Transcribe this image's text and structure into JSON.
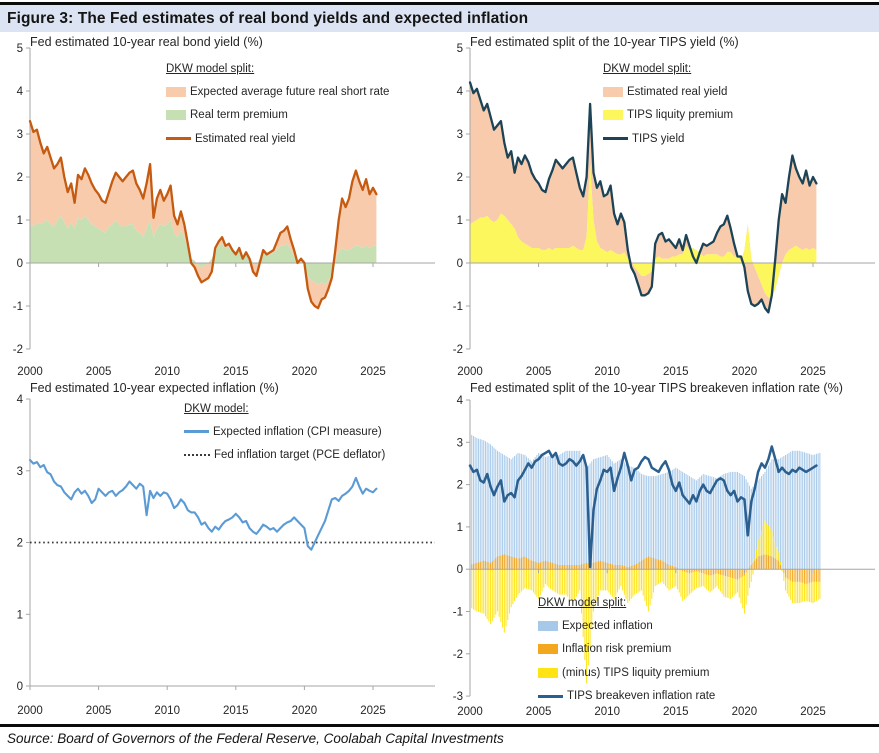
{
  "title_bar": {
    "text": "Figure 3: The Fed estimates of real bond yields and expected inflation"
  },
  "footer": {
    "text": "Source: Board of Governors of the Federal Reserve, Coolabah Capital Investments"
  },
  "colors": {
    "salmon": "#f8cbad",
    "green": "#c6e0b4",
    "rust": "#c55a11",
    "navy": "#1c4356",
    "steel": "#2b5f8f",
    "blue": "#5b9bd5",
    "lightblue": "#a7c9e9",
    "yellow_area": "#fdf75e",
    "yellow_bar": "#ffe312",
    "orange": "#f3a71e",
    "axis": "#a6a6a6",
    "text": "#262626",
    "target": "#3a3a3a",
    "titlebar_bg": "#dce3f2"
  },
  "chart_data": [
    {
      "id": "real-bond-yield",
      "type": "area",
      "title": "Fed estimated 10-year real bond yield (%)",
      "legend_title": "DKW model split:",
      "legend": [
        {
          "label": "Expected average future real short rate",
          "swatch": "area",
          "color": "salmon"
        },
        {
          "label": "Real term premium",
          "swatch": "area",
          "color": "green"
        },
        {
          "label": "Estimated real yield",
          "swatch": "line",
          "color": "rust"
        }
      ],
      "x": {
        "start": 2000,
        "step": 0.25,
        "ticks": [
          2000,
          2005,
          2010,
          2015,
          2020,
          2025
        ],
        "axis_max": 2029.5
      },
      "y": {
        "min": -2,
        "max": 5,
        "tick_step": 1
      },
      "render": {
        "kind": "stacked_area_line",
        "bottom": "real_term_premium",
        "total": "estimated_real_yield",
        "bottom_color": "green",
        "band_color": "salmon",
        "line_color": "rust"
      },
      "series": {
        "real_term_premium": [
          0.9,
          0.85,
          0.95,
          0.9,
          0.95,
          1.0,
          0.9,
          0.85,
          1.0,
          1.1,
          0.95,
          0.8,
          0.95,
          0.8,
          1.05,
          1.0,
          1.1,
          1.0,
          0.9,
          0.85,
          0.8,
          0.75,
          0.7,
          0.85,
          0.9,
          1.0,
          0.9,
          0.85,
          0.85,
          0.9,
          0.9,
          0.75,
          0.7,
          0.6,
          0.8,
          1.0,
          0.6,
          0.8,
          0.9,
          0.85,
          0.9,
          1.0,
          0.7,
          0.6,
          0.75,
          0.6,
          0.35,
          0.1,
          0.05,
          -0.05,
          -0.1,
          -0.05,
          0.0,
          0.1,
          0.3,
          0.4,
          0.45,
          0.35,
          0.35,
          0.3,
          0.25,
          0.3,
          0.15,
          0.25,
          0.15,
          0.0,
          -0.05,
          0.1,
          0.25,
          0.2,
          0.2,
          0.25,
          0.3,
          0.4,
          0.4,
          0.45,
          0.3,
          0.15,
          0.0,
          0.05,
          0.0,
          -0.3,
          -0.4,
          -0.45,
          -0.5,
          -0.45,
          -0.5,
          -0.4,
          -0.25,
          0.05,
          0.25,
          0.35,
          0.3,
          0.3,
          0.35,
          0.4,
          0.4,
          0.35,
          0.4,
          0.35,
          0.4,
          0.4
        ],
        "estimated_real_yield": [
          3.3,
          3.05,
          3.1,
          2.8,
          2.55,
          2.7,
          2.45,
          2.2,
          2.3,
          2.45,
          2.0,
          1.65,
          1.85,
          1.4,
          2.05,
          1.95,
          2.2,
          2.05,
          1.85,
          1.7,
          1.6,
          1.45,
          1.4,
          1.65,
          1.9,
          2.1,
          2.0,
          1.9,
          2.0,
          2.1,
          2.15,
          1.85,
          1.7,
          1.5,
          1.85,
          2.3,
          1.05,
          1.5,
          1.7,
          1.45,
          1.6,
          1.8,
          1.1,
          0.9,
          1.2,
          0.9,
          0.45,
          0.0,
          -0.1,
          -0.3,
          -0.45,
          -0.4,
          -0.35,
          -0.2,
          0.35,
          0.5,
          0.6,
          0.4,
          0.45,
          0.3,
          0.2,
          0.35,
          0.1,
          0.25,
          0.1,
          -0.2,
          -0.3,
          0.0,
          0.3,
          0.2,
          0.25,
          0.3,
          0.5,
          0.7,
          0.75,
          0.85,
          0.55,
          0.3,
          0.0,
          0.1,
          0.0,
          -0.6,
          -0.9,
          -1.0,
          -1.05,
          -0.85,
          -0.8,
          -0.6,
          -0.35,
          0.3,
          1.0,
          1.5,
          1.3,
          1.5,
          1.9,
          2.15,
          1.9,
          1.7,
          1.95,
          1.6,
          1.75,
          1.6
        ]
      }
    },
    {
      "id": "tips-yield-split",
      "type": "area",
      "title": "Fed estimated split of the 10-year TIPS yield (%)",
      "legend_title": "DKW model split:",
      "legend": [
        {
          "label": "Estimated real yield",
          "swatch": "area",
          "color": "salmon"
        },
        {
          "label": "TIPS liquity premium",
          "swatch": "area",
          "color": "yellow_area"
        },
        {
          "label": "TIPS yield",
          "swatch": "line",
          "color": "navy"
        }
      ],
      "x": {
        "start": 2000,
        "step": 0.25,
        "ticks": [
          2000,
          2005,
          2010,
          2015,
          2020,
          2025
        ],
        "axis_max": 2029.5
      },
      "y": {
        "min": -2,
        "max": 5,
        "tick_step": 1
      },
      "render": {
        "kind": "stacked_area_line",
        "bottom": "tips_liquidity_premium",
        "total": "tips_yield",
        "bottom_color": "yellow_area",
        "band_color": "salmon",
        "line_color": "navy"
      },
      "series": {
        "tips_liquidity_premium": [
          0.9,
          0.95,
          1.0,
          1.05,
          1.05,
          1.1,
          1.0,
          0.95,
          1.0,
          1.15,
          1.1,
          1.0,
          0.9,
          0.8,
          0.6,
          0.5,
          0.45,
          0.4,
          0.35,
          0.35,
          0.35,
          0.3,
          0.3,
          0.35,
          0.3,
          0.35,
          0.35,
          0.35,
          0.35,
          0.35,
          0.4,
          0.35,
          0.3,
          0.3,
          0.6,
          2.3,
          1.0,
          0.5,
          0.35,
          0.3,
          0.25,
          0.3,
          0.25,
          0.2,
          0.2,
          0.25,
          0.1,
          0.05,
          -0.1,
          -0.2,
          -0.3,
          -0.3,
          -0.25,
          -0.2,
          0.1,
          0.15,
          0.1,
          0.1,
          0.1,
          0.15,
          0.15,
          0.2,
          0.2,
          0.4,
          0.3,
          0.35,
          0.3,
          0.25,
          0.15,
          0.2,
          0.2,
          0.2,
          0.2,
          0.15,
          0.15,
          0.25,
          0.25,
          0.15,
          0.15,
          0.05,
          0.3,
          0.9,
          0.1,
          -0.1,
          -0.3,
          -0.5,
          -0.7,
          -0.8,
          -0.8,
          -0.6,
          -0.3,
          0.0,
          0.2,
          0.3,
          0.35,
          0.4,
          0.35,
          0.3,
          0.35,
          0.3,
          0.35,
          0.3
        ],
        "tips_yield": [
          4.2,
          3.95,
          4.05,
          3.8,
          3.55,
          3.7,
          3.4,
          3.1,
          3.2,
          3.3,
          2.8,
          2.45,
          2.6,
          2.1,
          2.45,
          2.3,
          2.5,
          2.35,
          2.1,
          1.95,
          1.85,
          1.7,
          1.65,
          1.95,
          2.15,
          2.4,
          2.3,
          2.2,
          2.3,
          2.4,
          2.45,
          2.1,
          1.75,
          1.55,
          2.0,
          3.7,
          2.1,
          1.75,
          1.9,
          1.55,
          1.6,
          1.8,
          1.15,
          0.9,
          1.15,
          0.95,
          0.3,
          -0.1,
          -0.25,
          -0.5,
          -0.75,
          -0.75,
          -0.7,
          -0.55,
          0.45,
          0.65,
          0.7,
          0.5,
          0.55,
          0.45,
          0.35,
          0.55,
          0.3,
          0.65,
          0.4,
          0.15,
          0.0,
          0.25,
          0.45,
          0.4,
          0.45,
          0.5,
          0.7,
          0.85,
          0.9,
          1.1,
          0.8,
          0.45,
          0.15,
          0.15,
          -0.1,
          -0.65,
          -0.95,
          -1.0,
          -0.95,
          -0.85,
          -1.05,
          -1.15,
          -0.75,
          0.1,
          1.0,
          1.6,
          1.4,
          2.0,
          2.5,
          2.2,
          2.0,
          1.85,
          2.15,
          1.8,
          2.0,
          1.85
        ]
      }
    },
    {
      "id": "expected-inflation",
      "type": "line",
      "title": "Fed estimated 10-year expected inflation (%)",
      "legend_title": "DKW model:",
      "legend": [
        {
          "label": "Expected inflation (CPI measure)",
          "swatch": "line",
          "color": "blue"
        },
        {
          "label": "Fed inflation target (PCE deflator)",
          "swatch": "dotted",
          "color": "target"
        }
      ],
      "x": {
        "start": 2000,
        "step": 0.25,
        "ticks": [
          2000,
          2005,
          2010,
          2015,
          2020,
          2025
        ],
        "axis_max": 2029.5
      },
      "y": {
        "min": 0,
        "max": 4,
        "tick_step": 1
      },
      "render": {
        "kind": "line_with_target",
        "line": "expected_inflation",
        "line_color": "blue",
        "target": 2.0
      },
      "series": {
        "expected_inflation": [
          3.15,
          3.1,
          3.12,
          3.05,
          3.08,
          2.98,
          2.95,
          2.85,
          2.8,
          2.78,
          2.7,
          2.65,
          2.6,
          2.7,
          2.75,
          2.68,
          2.72,
          2.65,
          2.55,
          2.6,
          2.75,
          2.7,
          2.65,
          2.7,
          2.72,
          2.65,
          2.7,
          2.73,
          2.78,
          2.85,
          2.8,
          2.75,
          2.82,
          2.78,
          2.38,
          2.72,
          2.62,
          2.7,
          2.65,
          2.7,
          2.68,
          2.6,
          2.48,
          2.52,
          2.6,
          2.55,
          2.45,
          2.42,
          2.42,
          2.35,
          2.25,
          2.28,
          2.2,
          2.15,
          2.22,
          2.18,
          2.25,
          2.3,
          2.32,
          2.35,
          2.4,
          2.35,
          2.28,
          2.3,
          2.2,
          2.15,
          2.12,
          2.18,
          2.25,
          2.22,
          2.18,
          2.2,
          2.15,
          2.2,
          2.25,
          2.28,
          2.3,
          2.35,
          2.3,
          2.25,
          2.2,
          1.95,
          1.9,
          2.0,
          2.1,
          2.2,
          2.3,
          2.45,
          2.6,
          2.62,
          2.58,
          2.65,
          2.68,
          2.72,
          2.78,
          2.9,
          2.78,
          2.68,
          2.75,
          2.72,
          2.7,
          2.75
        ],
        "fed_inflation_target": 2.0
      }
    },
    {
      "id": "breakeven-split",
      "type": "bar",
      "title": "Fed estimated split of the 10-year TIPS breakeven inflation rate (%)",
      "legend_title": "DKW model split:",
      "legend": [
        {
          "label": "Expected inflation",
          "swatch": "area",
          "color": "lightblue"
        },
        {
          "label": "Inflation risk premium",
          "swatch": "area",
          "color": "orange"
        },
        {
          "label": "(minus) TIPS liquity premium",
          "swatch": "area",
          "color": "yellow_bar"
        },
        {
          "label": "TIPS breakeven inflation rate",
          "swatch": "line",
          "color": "steel"
        }
      ],
      "x": {
        "start": 2000,
        "step": 0.25,
        "ticks": [
          2000,
          2005,
          2010,
          2015,
          2020,
          2025
        ],
        "axis_max": 2029.5
      },
      "y": {
        "min": -3,
        "max": 4,
        "tick_step": 1
      },
      "bars_x": {
        "start": 2000,
        "step": 0.5
      },
      "render": {
        "kind": "bars_with_line",
        "line": "tips_breakeven_rate",
        "line_color": "steel",
        "bar_blue": "expected_inflation_bars",
        "bar_orange": "inflation_risk_premium",
        "bar_yellow": "minus_tips_liquidity_premium"
      },
      "series": {
        "expected_inflation_bars": [
          3.2,
          3.1,
          3.05,
          2.95,
          2.8,
          2.7,
          2.6,
          2.75,
          2.7,
          2.55,
          2.75,
          2.65,
          2.7,
          2.7,
          2.8,
          2.8,
          2.8,
          2.4,
          2.6,
          2.65,
          2.7,
          2.5,
          2.6,
          2.45,
          2.4,
          2.25,
          2.2,
          2.2,
          2.25,
          2.3,
          2.4,
          2.3,
          2.2,
          2.1,
          2.25,
          2.2,
          2.15,
          2.25,
          2.3,
          2.3,
          2.2,
          1.9,
          2.1,
          2.3,
          2.6,
          2.6,
          2.7,
          2.8,
          2.8,
          2.75,
          2.7,
          2.75
        ],
        "inflation_risk_premium": [
          0.1,
          0.15,
          0.2,
          0.15,
          0.3,
          0.35,
          0.3,
          0.25,
          0.3,
          0.2,
          0.15,
          0.2,
          0.15,
          0.1,
          0.1,
          0.1,
          0.1,
          0.15,
          0.15,
          0.2,
          0.15,
          0.1,
          0.1,
          0.05,
          0.1,
          0.2,
          0.3,
          0.25,
          0.2,
          0.1,
          0.05,
          -0.05,
          -0.1,
          -0.05,
          -0.1,
          -0.15,
          -0.1,
          -0.15,
          -0.2,
          -0.25,
          -0.15,
          0.1,
          0.3,
          0.35,
          0.3,
          0.2,
          -0.2,
          -0.3,
          -0.3,
          -0.35,
          -0.3,
          -0.3
        ],
        "minus_tips_liquidity_premium": [
          -0.9,
          -1.0,
          -1.05,
          -1.3,
          -1.0,
          -1.5,
          -0.9,
          -0.6,
          -0.45,
          -0.5,
          -0.7,
          -0.35,
          -0.5,
          -0.6,
          -0.6,
          -0.8,
          -0.5,
          -2.7,
          -1.0,
          -0.5,
          -0.5,
          -0.7,
          -0.4,
          -0.8,
          -0.6,
          -0.5,
          -1.0,
          -0.4,
          -0.3,
          -0.5,
          -0.4,
          -0.7,
          -0.5,
          -0.4,
          -0.3,
          -0.4,
          -0.3,
          -0.5,
          -0.5,
          -0.3,
          -0.9,
          -0.3,
          0.4,
          0.8,
          0.6,
          0.2,
          -0.3,
          -0.5,
          -0.5,
          -0.4,
          -0.5,
          -0.4
        ],
        "tips_breakeven_rate": [
          2.45,
          2.3,
          2.35,
          2.1,
          2.05,
          2.25,
          1.95,
          1.75,
          1.95,
          2.1,
          1.6,
          1.75,
          1.8,
          1.7,
          2.1,
          2.2,
          2.35,
          2.5,
          2.4,
          2.55,
          2.6,
          2.7,
          2.75,
          2.8,
          2.65,
          2.75,
          2.5,
          2.45,
          2.5,
          2.6,
          2.55,
          2.45,
          2.55,
          2.7,
          2.4,
          0.05,
          1.4,
          1.9,
          2.1,
          2.35,
          2.3,
          2.4,
          1.85,
          2.15,
          2.4,
          2.75,
          2.45,
          2.1,
          2.35,
          2.4,
          2.55,
          2.65,
          2.6,
          2.4,
          2.35,
          2.3,
          2.45,
          2.55,
          2.35,
          2.0,
          1.85,
          2.05,
          1.75,
          1.65,
          1.55,
          1.75,
          1.6,
          1.85,
          2.0,
          1.85,
          1.8,
          1.95,
          2.1,
          2.15,
          2.1,
          1.85,
          1.75,
          1.85,
          1.6,
          1.7,
          1.65,
          0.8,
          1.6,
          1.9,
          2.3,
          2.5,
          2.4,
          2.6,
          2.9,
          2.6,
          2.3,
          2.4,
          2.3,
          2.25,
          2.35,
          2.3,
          2.4,
          2.35,
          2.3,
          2.35,
          2.4,
          2.45
        ]
      }
    }
  ]
}
